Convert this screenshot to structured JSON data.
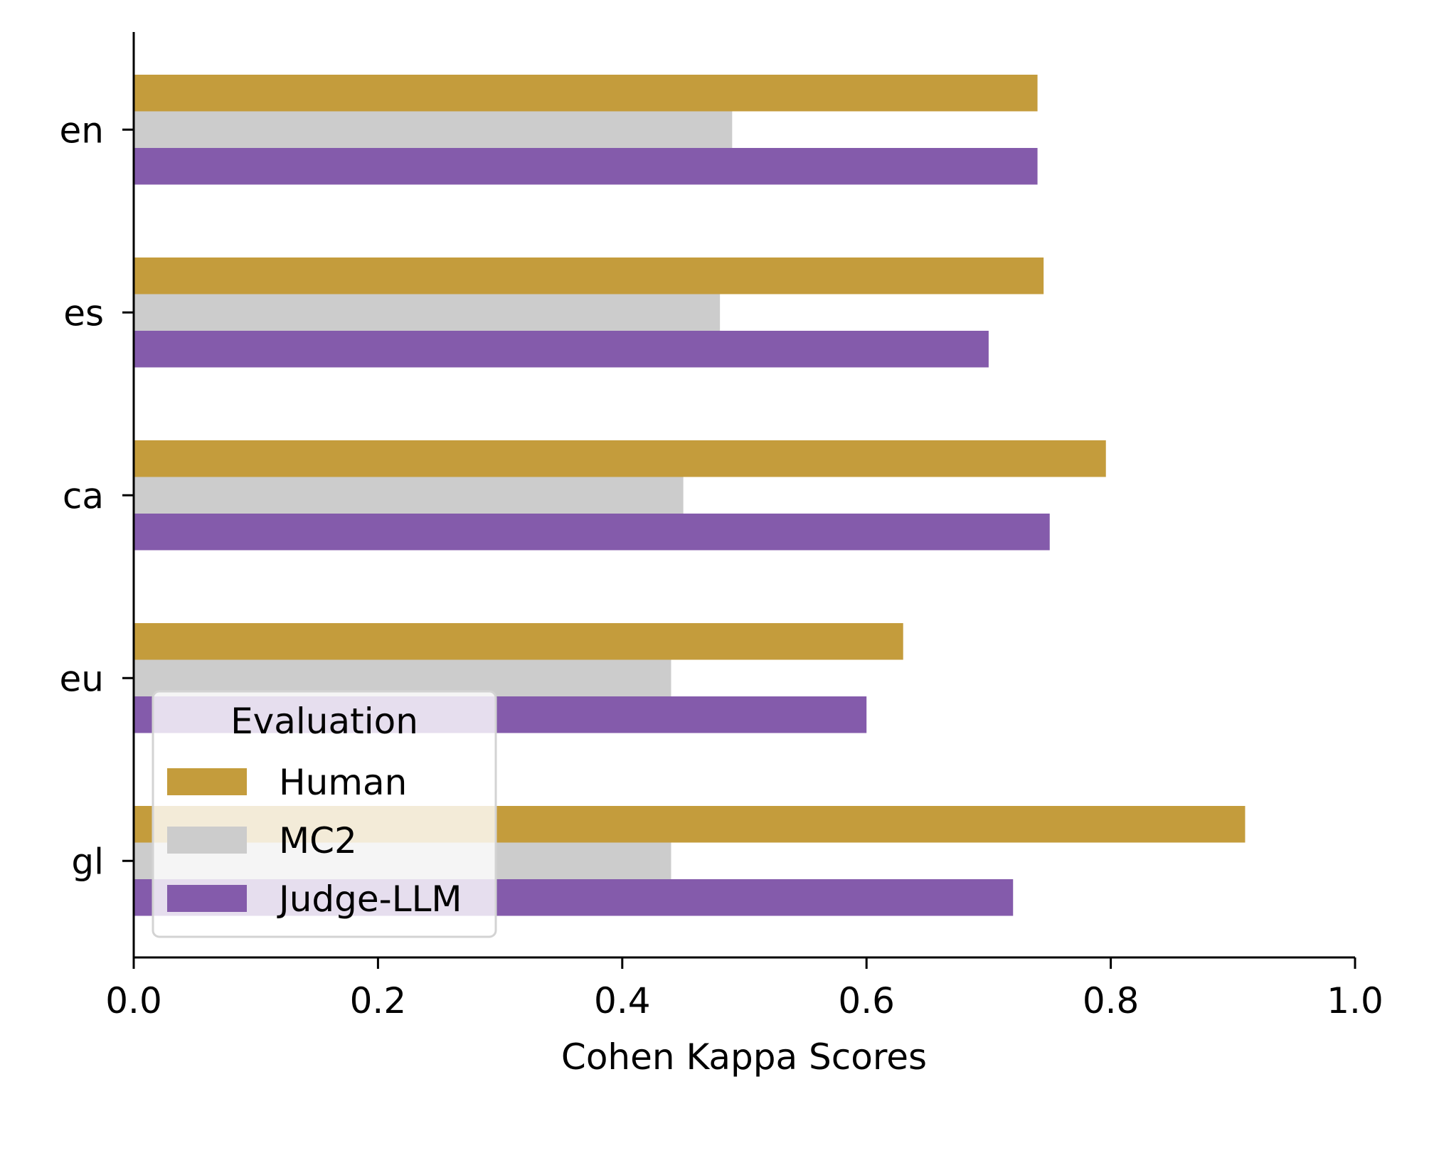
{
  "chart_data": {
    "type": "bar",
    "orientation": "horizontal",
    "title": "",
    "xlabel": "Cohen Kappa Scores",
    "ylabel": "",
    "xlim": [
      0.0,
      1.0
    ],
    "xticks": [
      "0.0",
      "0.2",
      "0.4",
      "0.6",
      "0.8",
      "1.0"
    ],
    "categories": [
      "en",
      "es",
      "ca",
      "eu",
      "gl"
    ],
    "series": [
      {
        "name": "Human",
        "color": "#c49c3c",
        "values": [
          0.74,
          0.745,
          0.796,
          0.63,
          0.91
        ]
      },
      {
        "name": "MC2",
        "color": "#cccccc",
        "values": [
          0.49,
          0.48,
          0.45,
          0.44,
          0.44
        ]
      },
      {
        "name": "Judge-LLM",
        "color": "#845bab",
        "values": [
          0.74,
          0.7,
          0.75,
          0.6,
          0.72
        ]
      }
    ],
    "legend": {
      "title": "Evaluation",
      "position": "lower-left"
    },
    "grid": false
  }
}
